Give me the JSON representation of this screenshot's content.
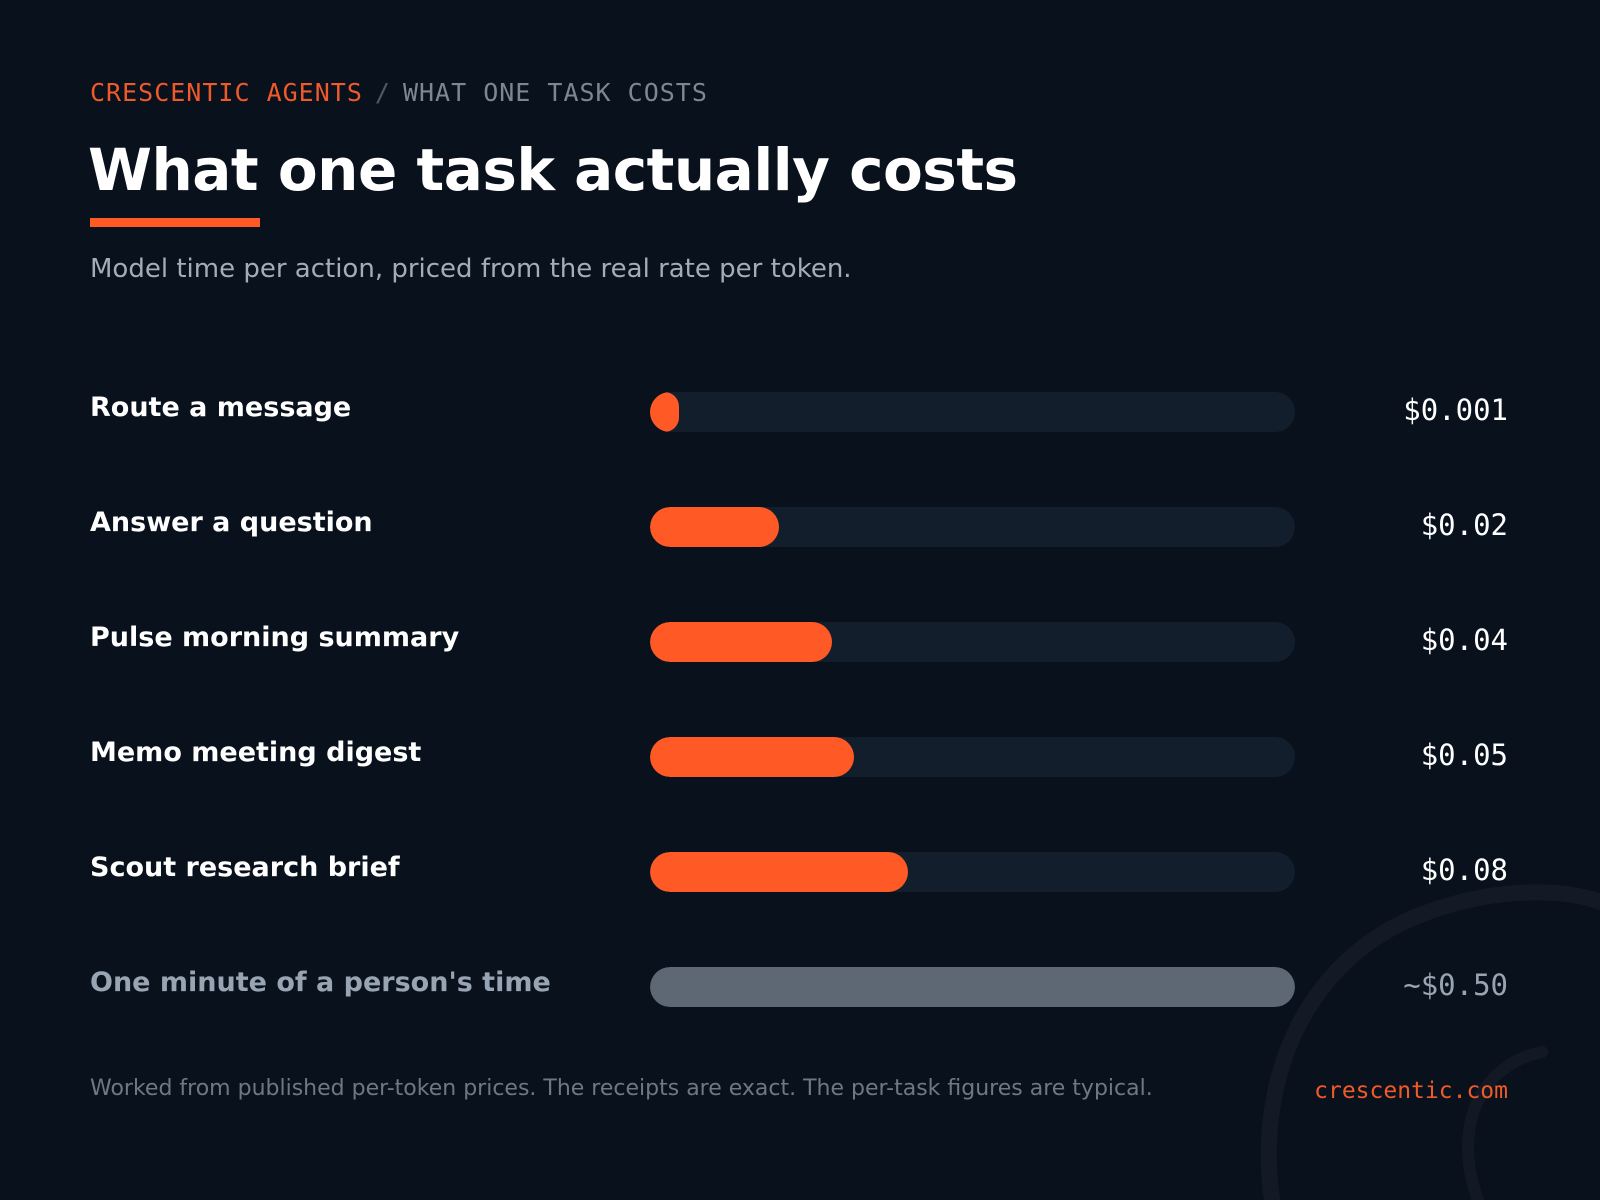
{
  "header": {
    "brand": "CRESCENTIC AGENTS",
    "separator": "/",
    "section": "WHAT ONE TASK COSTS"
  },
  "title": "What one task actually costs",
  "subtitle": "Model time per action, priced from the real rate per token.",
  "colors": {
    "accent": "#ff5a26",
    "comparison": "#5d6874",
    "track": "#131e2c",
    "background": "#09111d"
  },
  "chart_data": {
    "type": "bar",
    "orientation": "horizontal",
    "unit": "USD",
    "xlim": [
      0,
      0.5
    ],
    "grid": false,
    "categories": [
      "Route a message",
      "Answer a question",
      "Pulse morning summary",
      "Memo meeting digest",
      "Scout research brief",
      "One minute of a person's time"
    ],
    "values": [
      0.001,
      0.02,
      0.04,
      0.05,
      0.08,
      0.5
    ],
    "value_labels": [
      "$0.001",
      "$0.02",
      "$0.04",
      "$0.05",
      "$0.08",
      "~$0.50"
    ],
    "highlight": [
      true,
      true,
      true,
      true,
      true,
      false
    ]
  },
  "footer": {
    "note": "Worked from published per-token prices. The receipts are exact. The per-task figures are typical.",
    "site": "crescentic.com"
  }
}
